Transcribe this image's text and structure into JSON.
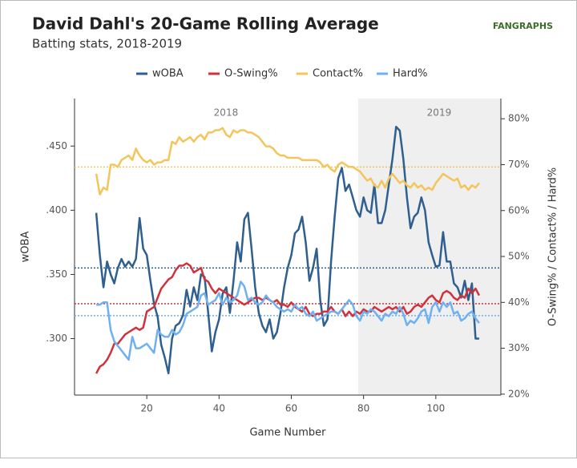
{
  "chart_data": {
    "type": "line",
    "title": "David Dahl's 20-Game Rolling Average",
    "subtitle": "Batting stats, 2018-2019",
    "source": "FANGRAPHS",
    "xlabel": "Game Number",
    "ylabel": "wOBA",
    "y2label": "O-Swing% / Contact% / Hard%",
    "xlim": [
      0,
      118
    ],
    "xticks": [
      20,
      40,
      60,
      80,
      100
    ],
    "ylim": [
      0.256,
      0.487
    ],
    "yticks": [
      {
        "value": 0.3,
        "label": ".300"
      },
      {
        "value": 0.35,
        "label": ".350"
      },
      {
        "value": 0.4,
        "label": ".400"
      },
      {
        "value": 0.45,
        "label": ".450"
      }
    ],
    "y2lim": [
      19.8,
      84.4
    ],
    "y2ticks": [
      {
        "value": 20,
        "label": "20%"
      },
      {
        "value": 30,
        "label": "30%"
      },
      {
        "value": 40,
        "label": "40%"
      },
      {
        "value": 50,
        "label": "50%"
      },
      {
        "value": 60,
        "label": "60%"
      },
      {
        "value": 70,
        "label": "70%"
      },
      {
        "value": 80,
        "label": "80%"
      }
    ],
    "seasons": [
      {
        "label": "2018",
        "start": 0,
        "end": 78.5,
        "shaded": false
      },
      {
        "label": "2019",
        "start": 78.5,
        "end": 118,
        "shaded": true
      }
    ],
    "legend": "top",
    "x": [
      6,
      7,
      8,
      9,
      10,
      11,
      12,
      13,
      14,
      15,
      16,
      17,
      18,
      19,
      20,
      21,
      22,
      23,
      24,
      25,
      26,
      27,
      28,
      29,
      30,
      31,
      32,
      33,
      34,
      35,
      36,
      37,
      38,
      39,
      40,
      41,
      42,
      43,
      44,
      45,
      46,
      47,
      48,
      49,
      50,
      51,
      52,
      53,
      54,
      55,
      56,
      57,
      58,
      59,
      60,
      61,
      62,
      63,
      64,
      65,
      66,
      67,
      68,
      69,
      70,
      71,
      72,
      73,
      74,
      75,
      76,
      77,
      78,
      79,
      80,
      81,
      82,
      83,
      84,
      85,
      86,
      87,
      88,
      89,
      90,
      91,
      92,
      93,
      94,
      95,
      96,
      97,
      98,
      99,
      100,
      101,
      102,
      103,
      104,
      105,
      106,
      107,
      108,
      109,
      110,
      111,
      112
    ],
    "series": [
      {
        "name": "wOBA",
        "color": "#2e5f8e",
        "axis": "y",
        "mean": 0.355,
        "values": [
          0.398,
          0.365,
          0.34,
          0.36,
          0.35,
          0.343,
          0.355,
          0.362,
          0.356,
          0.36,
          0.356,
          0.362,
          0.394,
          0.37,
          0.365,
          0.345,
          0.327,
          0.317,
          0.295,
          0.285,
          0.273,
          0.3,
          0.31,
          0.312,
          0.318,
          0.338,
          0.325,
          0.34,
          0.33,
          0.35,
          0.348,
          0.32,
          0.29,
          0.305,
          0.315,
          0.335,
          0.34,
          0.32,
          0.345,
          0.375,
          0.36,
          0.393,
          0.398,
          0.37,
          0.34,
          0.32,
          0.31,
          0.305,
          0.315,
          0.3,
          0.305,
          0.32,
          0.34,
          0.355,
          0.365,
          0.382,
          0.385,
          0.395,
          0.375,
          0.345,
          0.355,
          0.37,
          0.33,
          0.31,
          0.315,
          0.36,
          0.395,
          0.425,
          0.433,
          0.415,
          0.42,
          0.41,
          0.4,
          0.395,
          0.41,
          0.4,
          0.398,
          0.42,
          0.39,
          0.39,
          0.4,
          0.42,
          0.44,
          0.465,
          0.462,
          0.44,
          0.41,
          0.386,
          0.395,
          0.398,
          0.41,
          0.4,
          0.375,
          0.365,
          0.356,
          0.357,
          0.383,
          0.36,
          0.36,
          0.343,
          0.34,
          0.332,
          0.345,
          0.33,
          0.343,
          0.3,
          0.3
        ]
      },
      {
        "name": "O-Swing%",
        "color": "#d0313a",
        "axis": "y2",
        "mean": 39.7,
        "values": [
          24.5,
          26,
          26.5,
          27.5,
          29,
          31,
          31,
          32,
          33,
          33.5,
          34,
          34.5,
          34,
          34.5,
          38,
          38.5,
          39,
          41,
          43,
          44,
          45,
          45.5,
          47,
          48,
          48,
          48.5,
          48,
          46.5,
          47,
          47.5,
          45,
          44.5,
          43,
          42,
          43,
          42.5,
          42,
          41.5,
          41,
          40.5,
          40,
          39.5,
          40,
          40.5,
          41,
          41,
          40.5,
          41,
          40.5,
          40,
          40.5,
          39.5,
          39.5,
          39,
          40,
          39,
          38.5,
          38,
          39,
          37.5,
          37,
          37.5,
          37.5,
          38,
          38,
          39,
          38,
          37.5,
          38.5,
          37,
          38,
          37,
          38,
          37.5,
          38.5,
          38,
          38,
          39,
          38.5,
          38,
          38.5,
          39,
          38.5,
          39,
          38,
          39,
          37.5,
          38,
          39,
          39.5,
          39,
          40,
          41,
          41.5,
          40.5,
          40,
          42,
          42.5,
          42,
          41,
          40.5,
          41.5,
          41,
          43,
          42,
          43,
          41.5
        ]
      },
      {
        "name": "Contact%",
        "color": "#f3c55a",
        "axis": "y2",
        "mean": 69.5,
        "values": [
          68,
          63.5,
          65,
          64.5,
          70,
          70,
          69.5,
          71,
          71.5,
          72,
          71,
          73.5,
          72,
          71,
          70.5,
          71,
          70,
          70.5,
          70.5,
          71,
          71,
          75,
          74.5,
          76,
          75,
          75.5,
          76,
          75,
          76,
          76.5,
          75.5,
          77,
          77,
          77.5,
          77.5,
          78,
          76.5,
          76,
          77.5,
          77,
          77.5,
          77.5,
          77,
          77,
          76.5,
          76,
          75,
          74,
          74,
          73.5,
          72.5,
          72,
          72,
          71.5,
          71.5,
          71.5,
          71.5,
          71,
          71,
          71,
          71,
          71,
          70.5,
          69.5,
          70,
          69,
          68.5,
          70,
          70.5,
          70,
          69.5,
          69.5,
          69,
          68.5,
          67.5,
          66.5,
          67,
          65.5,
          65,
          66.5,
          65,
          67,
          68,
          67,
          66,
          66.5,
          65.5,
          65,
          66,
          65,
          65.5,
          64.5,
          65,
          64.5,
          66,
          67,
          68,
          67.5,
          67,
          66.5,
          67,
          65,
          65.5,
          64.5,
          65.5,
          65,
          66
        ]
      },
      {
        "name": "Hard%",
        "color": "#6fb1f0",
        "axis": "y2",
        "mean": 37.1,
        "values": [
          39.5,
          39.5,
          40,
          40,
          34,
          31.5,
          30.5,
          29.5,
          28.5,
          27.5,
          32.5,
          30,
          30,
          30.5,
          31,
          30,
          29,
          34,
          33,
          32.5,
          32.5,
          34,
          33,
          33.5,
          35,
          37.5,
          38,
          38.5,
          39,
          41.5,
          42,
          39.5,
          40,
          40.5,
          42,
          39.5,
          41,
          40,
          40.5,
          41.5,
          44.5,
          43.5,
          40.5,
          41,
          40,
          39.5,
          40,
          41.5,
          40.5,
          40,
          39,
          38.5,
          38,
          38.5,
          38,
          39.5,
          38.5,
          39,
          37.5,
          37,
          38,
          36,
          36.5,
          37,
          37.5,
          38,
          38,
          37.5,
          38.5,
          39.5,
          40.5,
          39.5,
          37,
          36,
          38,
          37.5,
          38.5,
          38,
          37,
          36,
          37.5,
          37,
          38,
          37.5,
          39,
          37.5,
          35,
          36,
          35.5,
          36.5,
          38,
          38.5,
          35.5,
          39,
          40,
          38,
          40,
          39,
          40,
          37.5,
          38,
          36,
          36.5,
          37.5,
          38,
          36.5,
          35.5
        ]
      }
    ]
  }
}
